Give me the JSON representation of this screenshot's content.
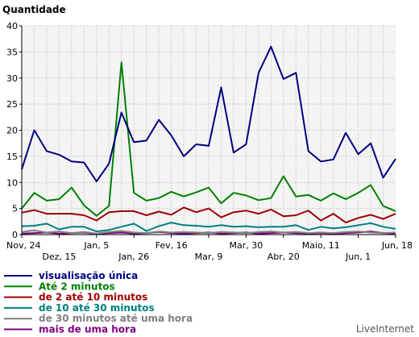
{
  "chart_data": {
    "type": "line",
    "ylabel": "Quantidade",
    "ylim": [
      0,
      40
    ],
    "yticks": [
      0,
      5,
      10,
      15,
      20,
      25,
      30,
      35,
      40
    ],
    "grid": true,
    "legend_position": "bottom-left",
    "brand": "LiveInternet",
    "x_tick_labels": [
      {
        "label": "Nov, 24",
        "index": 0,
        "row": 0
      },
      {
        "label": "Dez, 15",
        "index": 3,
        "row": 1
      },
      {
        "label": "Jan, 5",
        "index": 6,
        "row": 0
      },
      {
        "label": "Jan, 26",
        "index": 9,
        "row": 1
      },
      {
        "label": "Fev, 16",
        "index": 12,
        "row": 0
      },
      {
        "label": "Mar, 9",
        "index": 15,
        "row": 1
      },
      {
        "label": "Mar, 30",
        "index": 18,
        "row": 0
      },
      {
        "label": "Abr, 20",
        "index": 21,
        "row": 1
      },
      {
        "label": "Maio, 11",
        "index": 24,
        "row": 0
      },
      {
        "label": "Jun, 1",
        "index": 27,
        "row": 1
      },
      {
        "label": "Jun, 18",
        "index": 30,
        "row": 0
      }
    ],
    "series": [
      {
        "name": "visualisação única",
        "color": "#000080",
        "values": [
          12.5,
          20,
          16,
          15.3,
          14,
          13.8,
          10.2,
          13.6,
          23.4,
          17.7,
          18,
          22,
          19,
          15,
          17.3,
          17,
          28.2,
          15.7,
          17.3,
          31,
          36,
          29.8,
          31,
          16,
          14,
          14.4,
          19.5,
          15.4,
          17.5,
          10.9,
          14.5
        ]
      },
      {
        "name": "Até 2 minutos",
        "color": "#008000",
        "values": [
          5,
          8,
          6.5,
          6.8,
          9,
          5.6,
          3.6,
          5.5,
          33,
          8,
          6.5,
          7,
          8.2,
          7.3,
          8.1,
          9,
          6,
          8,
          7.5,
          6.6,
          7,
          11.2,
          7.3,
          7.6,
          6.5,
          7.9,
          6.8,
          8,
          9.5,
          5.5,
          4.5
        ]
      },
      {
        "name": "de 2 até 10 minutos",
        "color": "#a00000",
        "values": [
          4.2,
          4.7,
          4,
          4,
          4,
          3.7,
          2.7,
          4.3,
          4.5,
          4.5,
          3.7,
          4.4,
          3.8,
          5.2,
          4.3,
          5,
          3.3,
          4.3,
          4.6,
          4,
          4.8,
          3.5,
          3.7,
          4.6,
          2.7,
          4,
          2.3,
          3.2,
          3.8,
          3,
          4
        ]
      },
      {
        "name": "de 10 até 30 minutos",
        "color": "#008080",
        "values": [
          1.6,
          1.7,
          2.1,
          1,
          1.5,
          1.5,
          0.6,
          0.9,
          1.5,
          2.1,
          0.7,
          1.6,
          2.3,
          1.8,
          1.7,
          1.5,
          1.8,
          1.5,
          1.6,
          1.4,
          1.5,
          1.5,
          1.8,
          0.9,
          1.5,
          1.2,
          1.4,
          1.8,
          2.2,
          1.5,
          1.1
        ]
      },
      {
        "name": "de 30 minutos até uma hora",
        "color": "#808080",
        "values": [
          0.5,
          0.8,
          0.4,
          0.6,
          0.3,
          0.5,
          0.2,
          0.5,
          0.7,
          0.4,
          0.3,
          0.6,
          0.4,
          0.5,
          0.4,
          0.3,
          0.5,
          0.4,
          0.3,
          0.5,
          0.6,
          0.4,
          0.5,
          0.3,
          0.4,
          0.3,
          0.5,
          0.6,
          0.4,
          0.3,
          0.4
        ]
      },
      {
        "name": "mais de uma hora",
        "color": "#800080",
        "values": [
          0.2,
          0.3,
          0.4,
          0.2,
          0.3,
          0.4,
          0.1,
          0.3,
          0.4,
          0.2,
          0.3,
          0.5,
          0.3,
          0.2,
          0.3,
          0.4,
          0.2,
          0.3,
          0.4,
          0.2,
          0.3,
          0.4,
          0.3,
          0.2,
          0.3,
          0.2,
          0.3,
          0.4,
          0.6,
          0.3,
          0.2
        ]
      }
    ]
  }
}
